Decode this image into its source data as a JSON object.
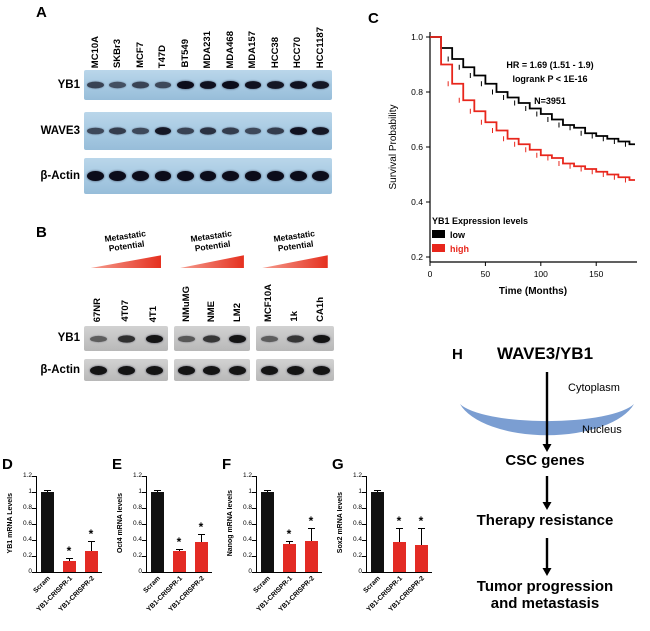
{
  "panel_a": {
    "label": "A",
    "cell_lines": [
      "MC10A",
      "SKBr3",
      "MCF7",
      "T47D",
      "BT549",
      "MDA231",
      "MDA468",
      "MDA157",
      "HCC38",
      "HCC70",
      "HCC1187"
    ],
    "rows": [
      {
        "label": "YB1",
        "bands": [
          0.55,
          0.45,
          0.55,
          0.5,
          1,
          0.95,
          1,
          0.95,
          0.9,
          0.95,
          0.9
        ]
      },
      {
        "label": "WAVE3",
        "bands": [
          0.5,
          0.6,
          0.5,
          0.9,
          0.55,
          0.7,
          0.6,
          0.5,
          0.6,
          0.95,
          0.9
        ]
      },
      {
        "label": "β-Actin",
        "bands": [
          1,
          1,
          1,
          1,
          1,
          1,
          1,
          1,
          1,
          1,
          1
        ]
      }
    ]
  },
  "panel_b": {
    "label": "B",
    "group_title_line1": "Metastatic",
    "group_title_line2": "Potential",
    "groups": [
      {
        "cells": [
          "67NR",
          "4T07",
          "4T1"
        ],
        "yb1": [
          0.35,
          0.75,
          1
        ],
        "actin": [
          1,
          1,
          1
        ]
      },
      {
        "cells": [
          "NMuMG",
          "NME",
          "LM2"
        ],
        "yb1": [
          0.4,
          0.7,
          1
        ],
        "actin": [
          1,
          1,
          1
        ]
      },
      {
        "cells": [
          "MCF10A",
          "1k",
          "CA1h"
        ],
        "yb1": [
          0.35,
          0.7,
          1
        ],
        "actin": [
          1,
          1,
          1
        ]
      }
    ],
    "rows": [
      {
        "label": "YB1"
      },
      {
        "label": "β-Actin"
      }
    ],
    "triangle_color": "#e5301f"
  },
  "panel_h": {
    "label": "H",
    "title": "WAVE3/YB1",
    "cytoplasm": "Cytoplasm",
    "nucleus": "Nucleus",
    "steps": [
      "CSC genes",
      "Therapy resistance",
      "Tumor progression and metastasis"
    ],
    "crescent_color": "#7b9ed2"
  },
  "chart_data": [
    {
      "panel": "C",
      "type": "line",
      "xlabel": "Time (Months)",
      "ylabel": "Survival Probability",
      "xlim": [
        0,
        185
      ],
      "xticks": [
        0,
        50,
        100,
        150
      ],
      "ytick_values": [
        0.2,
        0.4,
        0.6,
        0.8,
        1.0
      ],
      "ytick_labels": [
        "0.2",
        "0.4",
        "0.6",
        "0.8",
        "1.0"
      ],
      "annotations": [
        "HR = 1.69 (1.51 - 1.9)",
        "logrank P < 1E-16"
      ],
      "n_label": "N=3951",
      "legend_title": "YB1 Expression levels",
      "legend_position": "lower-left",
      "series": [
        {
          "name": "low",
          "color": "#000000",
          "x": [
            0,
            10,
            20,
            30,
            40,
            50,
            60,
            70,
            80,
            90,
            100,
            110,
            120,
            130,
            140,
            150,
            160,
            170,
            180
          ],
          "y": [
            1.0,
            0.96,
            0.92,
            0.89,
            0.86,
            0.83,
            0.8,
            0.78,
            0.76,
            0.74,
            0.72,
            0.7,
            0.68,
            0.67,
            0.65,
            0.64,
            0.63,
            0.62,
            0.61
          ]
        },
        {
          "name": "high",
          "color": "#e8261c",
          "x": [
            0,
            10,
            20,
            30,
            40,
            50,
            60,
            70,
            80,
            90,
            100,
            110,
            120,
            130,
            140,
            150,
            160,
            170,
            180
          ],
          "y": [
            1.0,
            0.9,
            0.83,
            0.77,
            0.73,
            0.69,
            0.66,
            0.63,
            0.61,
            0.59,
            0.57,
            0.56,
            0.54,
            0.53,
            0.52,
            0.51,
            0.5,
            0.49,
            0.48
          ]
        }
      ]
    },
    {
      "panel": "D",
      "type": "bar",
      "ylabel": "YB1 mRNA Levels",
      "categories": [
        "Scram",
        "YB1-CRISPR-1",
        "YB1-CRISPR-2"
      ],
      "values": [
        1.0,
        0.14,
        0.26
      ],
      "errors": [
        0.02,
        0.04,
        0.13
      ],
      "sig": [
        "",
        "*",
        "*"
      ],
      "ylim": [
        0,
        1.2
      ],
      "ytick_values": [
        0,
        0.2,
        0.4,
        0.6,
        0.8,
        1,
        1.2
      ],
      "ytick_labels": [
        "0",
        "0.2",
        "0.4",
        "0.6",
        "0.8",
        "1",
        "1.2"
      ],
      "colors": [
        "#111111",
        "#e32b24",
        "#e32b24"
      ]
    },
    {
      "panel": "E",
      "type": "bar",
      "ylabel": "Oct4 mRNA levels",
      "categories": [
        "Scram",
        "YB1-CRISPR-1",
        "YB1-CRISPR-2"
      ],
      "values": [
        1.0,
        0.26,
        0.37
      ],
      "errors": [
        0.02,
        0.03,
        0.1
      ],
      "sig": [
        "",
        "*",
        "*"
      ],
      "ylim": [
        0,
        1.2
      ],
      "ytick_values": [
        0,
        0.2,
        0.4,
        0.6,
        0.8,
        1,
        1.2
      ],
      "ytick_labels": [
        "0",
        "0.2",
        "0.4",
        "0.6",
        "0.8",
        "1",
        "1.2"
      ],
      "colors": [
        "#111111",
        "#e32b24",
        "#e32b24"
      ]
    },
    {
      "panel": "F",
      "type": "bar",
      "ylabel": "Nanog mRNA levels",
      "categories": [
        "Scram",
        "YB1-CRISPR-1",
        "YB1-CRISPR-2"
      ],
      "values": [
        1.0,
        0.35,
        0.39
      ],
      "errors": [
        0.02,
        0.04,
        0.16
      ],
      "sig": [
        "",
        "*",
        "*"
      ],
      "ylim": [
        0,
        1.2
      ],
      "ytick_values": [
        0,
        0.2,
        0.4,
        0.6,
        0.8,
        1,
        1.2
      ],
      "ytick_labels": [
        "0",
        "0.2",
        "0.4",
        "0.6",
        "0.8",
        "1",
        "1.2"
      ],
      "colors": [
        "#111111",
        "#e32b24",
        "#e32b24"
      ]
    },
    {
      "panel": "G",
      "type": "bar",
      "ylabel": "Sox2 mRNA levels",
      "categories": [
        "Scram",
        "YB1-CRISPR-1",
        "YB1-CRISPR-2"
      ],
      "values": [
        1.0,
        0.38,
        0.34
      ],
      "errors": [
        0.02,
        0.17,
        0.21
      ],
      "sig": [
        "",
        "*",
        "*"
      ],
      "ylim": [
        0,
        1.2
      ],
      "ytick_values": [
        0,
        0.2,
        0.4,
        0.6,
        0.8,
        1,
        1.2
      ],
      "ytick_labels": [
        "0",
        "0.2",
        "0.4",
        "0.6",
        "0.8",
        "1",
        "1.2"
      ],
      "colors": [
        "#111111",
        "#e32b24",
        "#e32b24"
      ]
    }
  ]
}
